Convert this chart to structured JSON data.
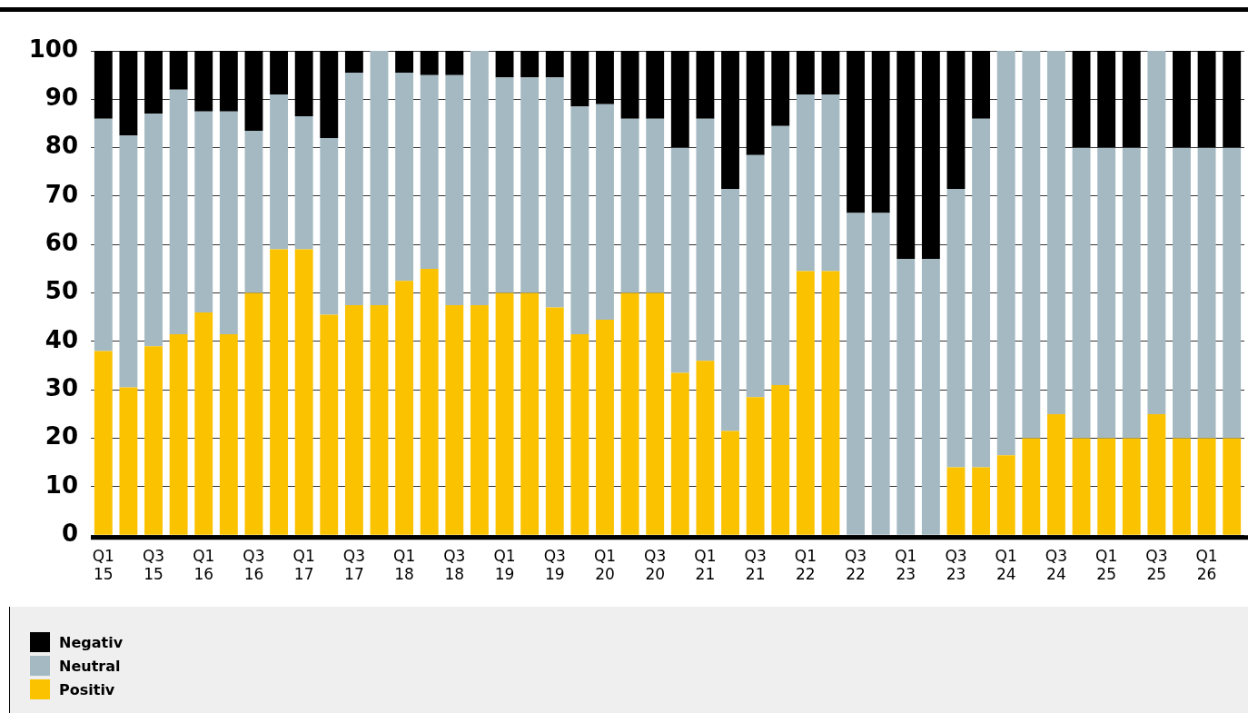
{
  "chart_data": {
    "type": "bar",
    "stacked": true,
    "categories": [
      "Q1 15",
      null,
      "Q3 15",
      null,
      "Q1 16",
      null,
      "Q3 16",
      null,
      "Q1 17",
      null,
      "Q3 17",
      null,
      "Q1 18",
      null,
      "Q3 18",
      null,
      "Q1 19",
      null,
      "Q3 19",
      null,
      "Q1 20",
      null,
      "Q3 20",
      null,
      "Q1 21",
      null,
      "Q3 21",
      null,
      "Q1 22",
      null,
      "Q3 22",
      null,
      "Q1 23",
      null,
      "Q3 23",
      null,
      "Q1 24",
      null,
      "Q3 24",
      null,
      "Q1 25",
      null,
      "Q3 25",
      null,
      "Q1 26",
      null
    ],
    "series": [
      {
        "name": "Positiv",
        "color": "#fbc200",
        "values": [
          38,
          30.5,
          39,
          41.5,
          46,
          41.5,
          50,
          59,
          59,
          45.5,
          47.5,
          47.5,
          52.5,
          55,
          47.5,
          47.5,
          50,
          50,
          47,
          41.5,
          44.5,
          50,
          50,
          33.5,
          36,
          21.5,
          28.5,
          31,
          54.5,
          54.5,
          0,
          0,
          0,
          0,
          14,
          14,
          16.5,
          20,
          25,
          20,
          20,
          20,
          25,
          20,
          20,
          20
        ]
      },
      {
        "name": "Neutral",
        "color": "#a4b9c2",
        "values": [
          48,
          52,
          48,
          50.5,
          41.5,
          46,
          33.5,
          32,
          27.5,
          36.5,
          48,
          52.5,
          43,
          40,
          47.5,
          52.5,
          44.5,
          44.5,
          47.5,
          47,
          44.5,
          36,
          36,
          46.5,
          50,
          50,
          50,
          53.5,
          36.5,
          36.5,
          66.5,
          66.5,
          57,
          57,
          57.5,
          72,
          83.5,
          80,
          75,
          60,
          60,
          60,
          75,
          60,
          60,
          60
        ]
      },
      {
        "name": "Negativ",
        "color": "#000000",
        "values": [
          14,
          17.5,
          13,
          8,
          12.5,
          12.5,
          16.5,
          9,
          13.5,
          18,
          4.5,
          0,
          4.5,
          5,
          5,
          0,
          5.5,
          5.5,
          5.5,
          11.5,
          11,
          14,
          14,
          20,
          14,
          28.5,
          21.5,
          15.5,
          9,
          9,
          33.5,
          33.5,
          43,
          43,
          28.5,
          14,
          0,
          0,
          0,
          20,
          20,
          20,
          0,
          20,
          20,
          20
        ]
      }
    ],
    "ylim": [
      0,
      100
    ],
    "yticks": [
      0,
      10,
      20,
      30,
      40,
      50,
      60,
      70,
      80,
      90,
      100
    ],
    "grid": "y",
    "legend": "bottom left"
  }
}
